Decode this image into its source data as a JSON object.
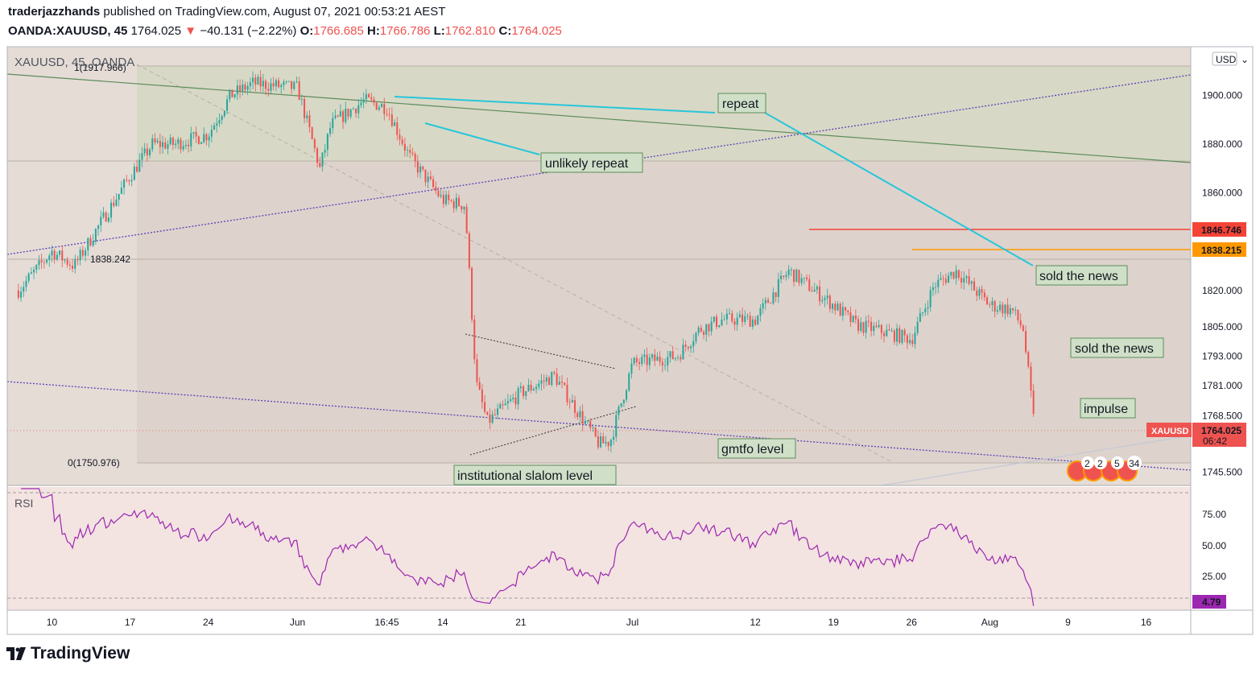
{
  "header": {
    "author": "traderjazzhands",
    "published_text": " published on TradingView.com, August 07, 2021 00:53:21 AEST",
    "symbol": "OANDA:XAUUSD, 45",
    "last": "1764.025",
    "change": "−40.131 (−2.22%)",
    "o_label": "O:",
    "o": "1766.685",
    "h_label": "H:",
    "h": "1766.786",
    "l_label": "L:",
    "l": "1762.810",
    "c_label": "C:",
    "c": "1764.025"
  },
  "pane": {
    "title": "XAUUSD, 45, OANDA",
    "currency": "USD",
    "rsi_label": "RSI"
  },
  "fib_labels": {
    "top": "1(1917.966)",
    "mid": "1838.242",
    "bottom": "0(1750.976)"
  },
  "annotations": {
    "repeat": "repeat",
    "unlikely_repeat": "unlikely repeat",
    "sold_news_1": "sold the news",
    "sold_news_2": "sold the news",
    "impulse": "impulse",
    "gmtfo": "gmtfo level",
    "slalom": "institutional slalom level"
  },
  "price_tags": {
    "resistance_red": "1846.746",
    "resistance_orange": "1838.215",
    "symbol": "XAUUSD",
    "current": "1764.025",
    "countdown": "06:42",
    "rsi_value": "4.79"
  },
  "events": [
    "2",
    "2",
    "5",
    "34"
  ],
  "brand": "TradingView",
  "colors": {
    "up": "#26a69a",
    "down": "#ef5350",
    "rsi": "#9c27b0",
    "annot_line": "#26c6da",
    "fib_green": "#5b8c5a"
  },
  "chart_data": {
    "type": "candlestick",
    "title": "XAUUSD, 45, OANDA",
    "ylim": [
      1740,
      1920
    ],
    "price_axis_ticks": [
      1900,
      1880,
      1860,
      1820,
      1805,
      1793,
      1781,
      1768.5,
      1745.5
    ],
    "x_ticks": [
      "10",
      "17",
      "24",
      "Jun",
      "16:45",
      "14",
      "21",
      "Jul",
      "12",
      "19",
      "26",
      "Aug",
      "9",
      "16"
    ],
    "price_path": {
      "dates": [
        "May 7",
        "May 10",
        "May 12",
        "May 14",
        "May 17",
        "May 19",
        "May 21",
        "May 24",
        "May 26",
        "May 28",
        "Jun 1",
        "Jun 3",
        "Jun 4",
        "Jun 7",
        "Jun 9",
        "Jun 11",
        "Jun 14",
        "Jun 16",
        "Jun 17",
        "Jun 18",
        "Jun 21",
        "Jun 24",
        "Jun 28",
        "Jun 29",
        "Jul 1",
        "Jul 5",
        "Jul 7",
        "Jul 9",
        "Jul 12",
        "Jul 15",
        "Jul 19",
        "Jul 21",
        "Jul 26",
        "Jul 28",
        "Jul 30",
        "Aug 2",
        "Aug 4",
        "Aug 5",
        "Aug 6"
      ],
      "close": [
        1820,
        1836,
        1830,
        1845,
        1867,
        1880,
        1880,
        1884,
        1900,
        1905,
        1903,
        1870,
        1888,
        1898,
        1895,
        1875,
        1857,
        1855,
        1782,
        1766,
        1778,
        1785,
        1757,
        1758,
        1790,
        1793,
        1804,
        1808,
        1808,
        1828,
        1814,
        1806,
        1800,
        1822,
        1828,
        1814,
        1812,
        1804,
        1764
      ]
    },
    "rsi": {
      "ylim": [
        0,
        100
      ],
      "ticks": [
        75,
        50,
        25
      ],
      "last": 4.79
    },
    "levels": [
      {
        "name": "repeat-line",
        "label": "repeat"
      },
      {
        "name": "sold-the-news-level",
        "value": 1846.746
      },
      {
        "name": "resistance",
        "value": 1838.215
      }
    ]
  }
}
